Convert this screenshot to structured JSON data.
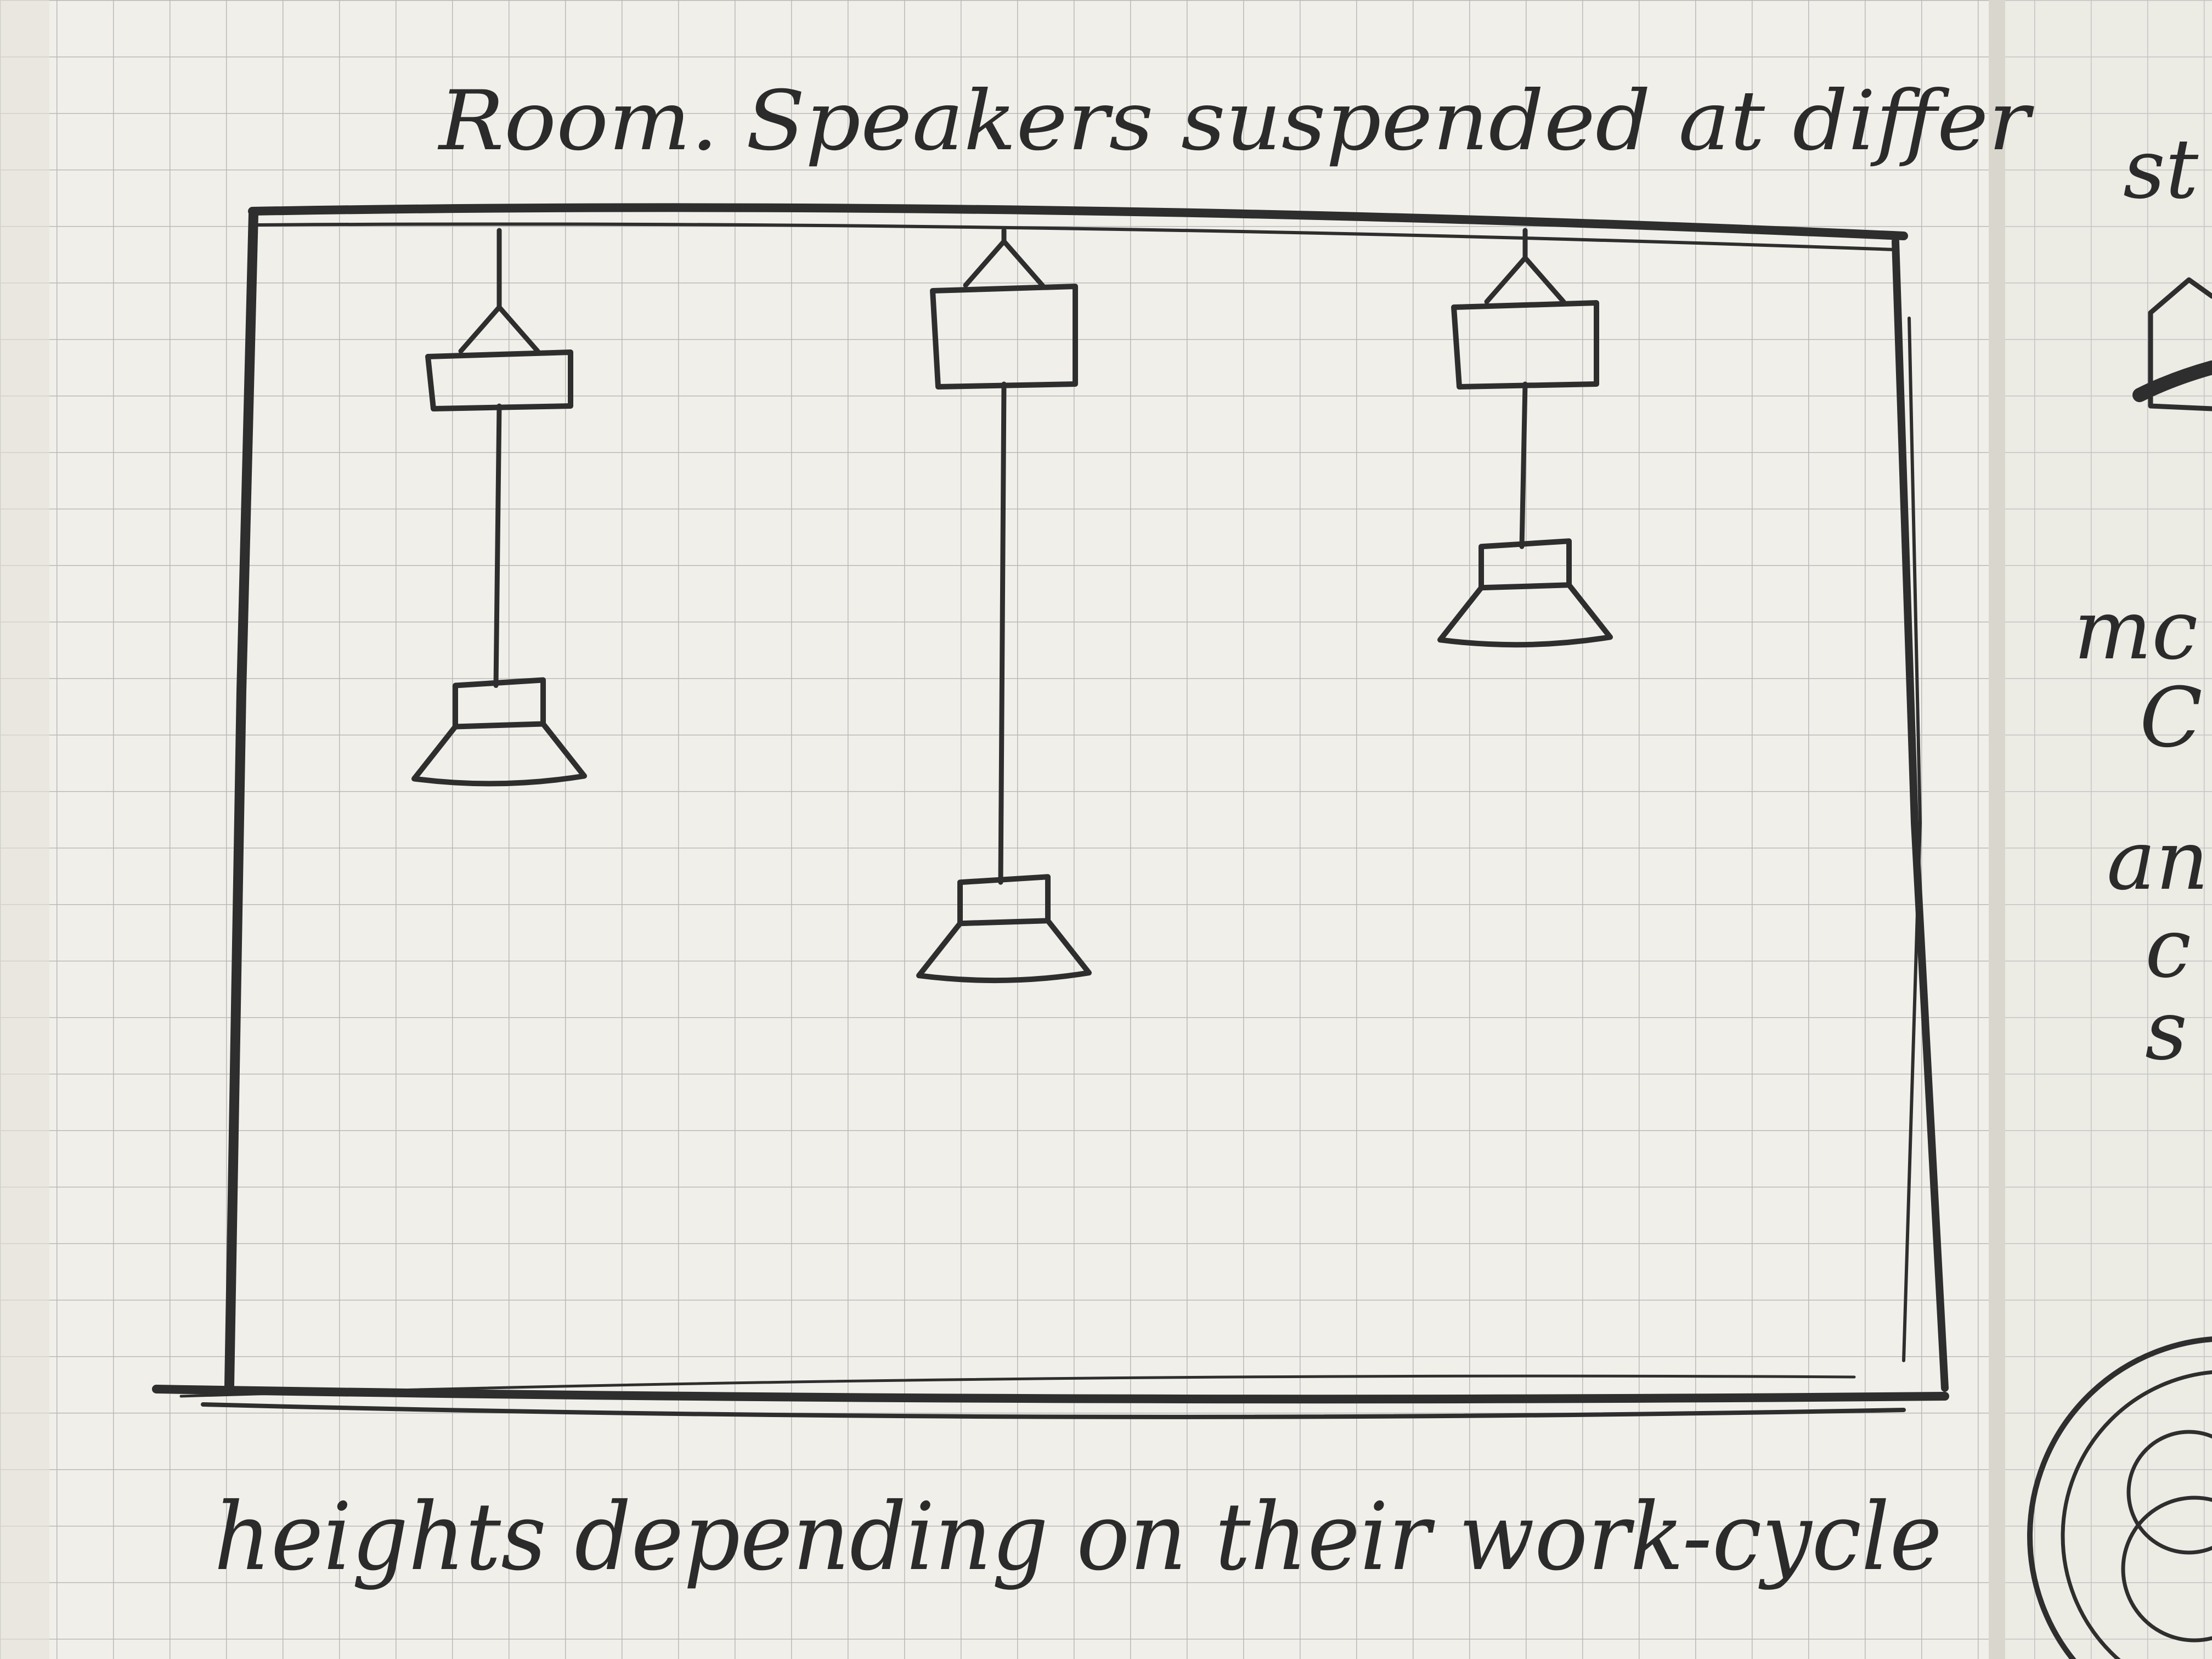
{
  "sketch": {
    "title_line": "Room. Speakers suspended at differ",
    "caption_line": "heights depending on their work-cycle",
    "margin_fragments": [
      "st",
      "mc",
      "C",
      "an",
      "c",
      "s"
    ]
  },
  "speakers": [
    {
      "name": "speaker-left",
      "hang_level": 0.45
    },
    {
      "name": "speaker-middle",
      "hang_level": 0.62
    },
    {
      "name": "speaker-right",
      "hang_level": 0.33
    }
  ],
  "colors": {
    "paper": "#f2f0ea",
    "grid": "#b9b9b9",
    "pencil": "#2e2e2e"
  }
}
